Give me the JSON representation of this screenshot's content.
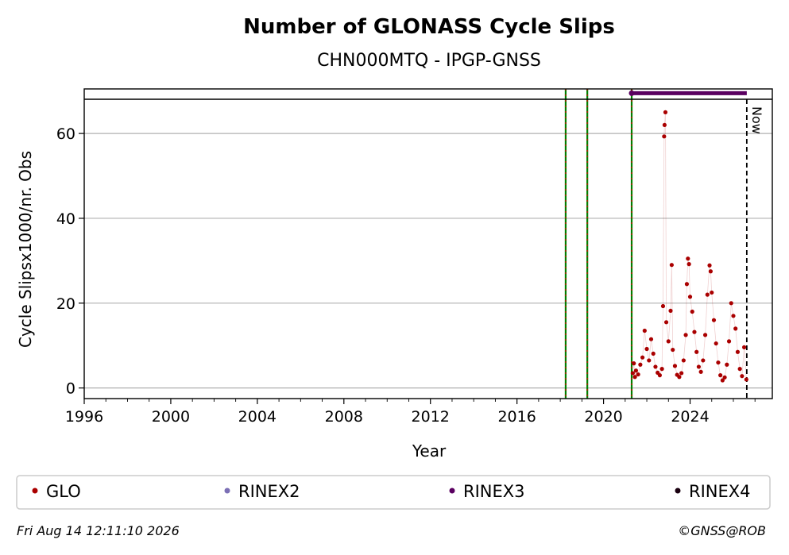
{
  "chart_data": {
    "type": "scatter",
    "title": "Number of GLONASS Cycle Slips",
    "subtitle": "CHN000MTQ - IPGP-GNSS",
    "xlabel": "Year",
    "ylabel": "Cycle Slipsx1000/nr. Obs",
    "xlim": [
      1996,
      2027.8
    ],
    "ylim": [
      -2.5,
      70.5
    ],
    "x_ticks": [
      1996,
      2000,
      2004,
      2008,
      2012,
      2016,
      2020,
      2024
    ],
    "y_ticks": [
      0,
      20,
      40,
      60
    ],
    "grid": "horizontal",
    "legend_placement": "bottom",
    "vertical_markers": [
      2018.25,
      2019.25,
      2021.3
    ],
    "now_marker": {
      "x": 2026.62,
      "label": "Now"
    },
    "series": [
      {
        "name": "GLO",
        "color": "#aa0000",
        "points": [
          [
            2021.35,
            3.5
          ],
          [
            2021.4,
            5.8
          ],
          [
            2021.45,
            2.6
          ],
          [
            2021.5,
            4.1
          ],
          [
            2021.6,
            3.2
          ],
          [
            2021.7,
            5.5
          ],
          [
            2021.8,
            7.2
          ],
          [
            2021.9,
            13.5
          ],
          [
            2022.0,
            9.2
          ],
          [
            2022.1,
            6.5
          ],
          [
            2022.2,
            11.5
          ],
          [
            2022.3,
            8.1
          ],
          [
            2022.4,
            5.0
          ],
          [
            2022.5,
            3.6
          ],
          [
            2022.6,
            3.0
          ],
          [
            2022.7,
            4.5
          ],
          [
            2022.75,
            19.3
          ],
          [
            2022.8,
            59.3
          ],
          [
            2022.82,
            62.0
          ],
          [
            2022.86,
            65.0
          ],
          [
            2022.9,
            15.5
          ],
          [
            2023.0,
            11.0
          ],
          [
            2023.1,
            18.2
          ],
          [
            2023.15,
            29.0
          ],
          [
            2023.2,
            9.0
          ],
          [
            2023.3,
            5.2
          ],
          [
            2023.4,
            3.1
          ],
          [
            2023.5,
            2.6
          ],
          [
            2023.6,
            3.5
          ],
          [
            2023.7,
            6.5
          ],
          [
            2023.8,
            12.5
          ],
          [
            2023.85,
            24.5
          ],
          [
            2023.9,
            30.5
          ],
          [
            2023.95,
            29.2
          ],
          [
            2024.0,
            21.5
          ],
          [
            2024.1,
            18.0
          ],
          [
            2024.2,
            13.2
          ],
          [
            2024.3,
            8.5
          ],
          [
            2024.4,
            5.0
          ],
          [
            2024.5,
            3.8
          ],
          [
            2024.6,
            6.5
          ],
          [
            2024.7,
            12.5
          ],
          [
            2024.8,
            22.0
          ],
          [
            2024.9,
            28.9
          ],
          [
            2024.95,
            27.5
          ],
          [
            2025.0,
            22.5
          ],
          [
            2025.1,
            16.0
          ],
          [
            2025.2,
            10.5
          ],
          [
            2025.3,
            6.0
          ],
          [
            2025.4,
            3.0
          ],
          [
            2025.5,
            1.8
          ],
          [
            2025.6,
            2.5
          ],
          [
            2025.7,
            5.5
          ],
          [
            2025.8,
            11.0
          ],
          [
            2025.9,
            20.0
          ],
          [
            2026.0,
            17.0
          ],
          [
            2026.1,
            14.0
          ],
          [
            2026.2,
            8.5
          ],
          [
            2026.3,
            4.5
          ],
          [
            2026.4,
            2.8
          ],
          [
            2026.5,
            9.6
          ],
          [
            2026.6,
            2.0
          ]
        ]
      },
      {
        "name": "RINEX2",
        "color": "#7b6fb5",
        "points": []
      },
      {
        "name": "RINEX3",
        "color": "#5a0060",
        "segment": [
          2021.3,
          2026.62
        ],
        "y": 69.5
      },
      {
        "name": "RINEX4",
        "color": "#1a0010",
        "points": []
      }
    ]
  },
  "footer": {
    "timestamp": "Fri Aug 14 12:11:10 2026",
    "credit": "©GNSS@ROB"
  }
}
